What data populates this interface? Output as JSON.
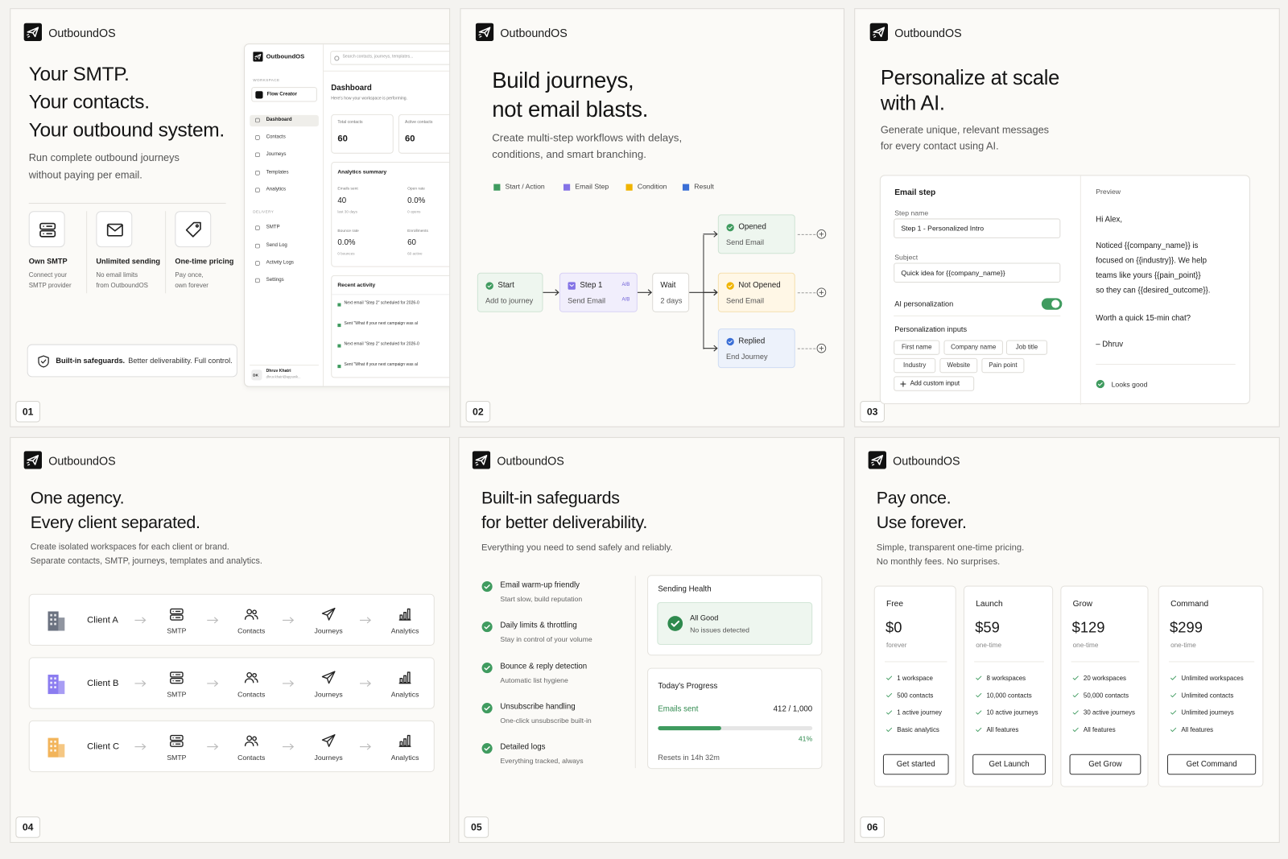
{
  "brand": "OutboundOS",
  "panels": [
    {
      "number": "01",
      "headline": [
        "Your SMTP.",
        "Your contacts.",
        "Your outbound system."
      ],
      "subtitle": [
        "Run complete outbound journeys",
        "without paying per email."
      ],
      "features": [
        {
          "title": "Own SMTP",
          "desc": [
            "Connect your",
            "SMTP provider"
          ]
        },
        {
          "title": "Unlimited sending",
          "desc": [
            "No email limits",
            "from OutboundOS"
          ]
        },
        {
          "title": "One-time pricing",
          "desc": [
            "Pay once,",
            "own forever"
          ]
        }
      ],
      "safeguard": {
        "strong": "Built-in safeguards.",
        "text": "Better deliverability. Full control."
      },
      "dashboard": {
        "search": "Search contacts, journeys, templates...",
        "workspace_label": "WORKSPACE",
        "workspace": "Flow Creator",
        "nav": [
          "Dashboard",
          "Contacts",
          "Journeys",
          "Templates",
          "Analytics"
        ],
        "delivery_label": "DELIVERY",
        "delivery_nav": [
          "SMTP",
          "Send Log",
          "Activity Logs",
          "Settings"
        ],
        "user": {
          "initials": "DK",
          "name": "Dhruv Khatri",
          "email": "dhruv.khatri@appunik..."
        },
        "title": "Dashboard",
        "subtitle": "Here's how your workspace is performing.",
        "stats": [
          {
            "label": "Total contacts",
            "value": "60"
          },
          {
            "label": "Active contacts",
            "value": "60"
          }
        ],
        "analytics_title": "Analytics summary",
        "analytics": [
          {
            "label": "Emails sent",
            "value": "40",
            "note": "last 30 days"
          },
          {
            "label": "Open rate",
            "value": "0.0%",
            "note": "0 opens"
          },
          {
            "label": "Bounce rate",
            "value": "0.0%",
            "note": "0 bounces"
          },
          {
            "label": "Enrollments",
            "value": "60",
            "note": "60 active"
          }
        ],
        "activity_title": "Recent activity",
        "activity": [
          "Next email \"Step 2\" scheduled for 2026-0",
          "Sent \"What if your next campaign was al",
          "Next email \"Step 2\" scheduled for 2026-0",
          "Sent \"What if your next campaign was al"
        ]
      }
    },
    {
      "number": "02",
      "headline": [
        "Build journeys,",
        "not email blasts."
      ],
      "subtitle": [
        "Create multi-step workflows with delays,",
        "conditions, and smart branching."
      ],
      "legend": [
        {
          "name": "Start / Action",
          "color": "#3f9b5f"
        },
        {
          "name": "Email Step",
          "color": "#8473e6"
        },
        {
          "name": "Condition",
          "color": "#f0b400"
        },
        {
          "name": "Result",
          "color": "#3b6fd6"
        }
      ],
      "start": {
        "title": "Start",
        "sub": "Add to journey"
      },
      "step": {
        "title": "Step 1",
        "sub": "Send Email",
        "badge": "A/B"
      },
      "wait": {
        "title": "Wait",
        "sub": "2 days"
      },
      "branches": [
        {
          "title": "Opened",
          "sub": "Send Email"
        },
        {
          "title": "Not Opened",
          "sub": "Send Email"
        },
        {
          "title": "Replied",
          "sub": "End Journey"
        }
      ]
    },
    {
      "number": "03",
      "headline": [
        "Personalize at scale",
        "with AI."
      ],
      "subtitle": [
        "Generate unique, relevant messages",
        "for every contact using AI."
      ],
      "form": {
        "title": "Email step",
        "step_label": "Step name",
        "step_value": "Step 1 - Personalized Intro",
        "subject_label": "Subject",
        "subject_value": "Quick idea for {{company_name}}",
        "ai_label": "AI personalization",
        "inputs_label": "Personalization inputs",
        "chips": [
          "First name",
          "Company name",
          "Job title",
          "Industry",
          "Website",
          "Pain point"
        ],
        "add": "Add custom input"
      },
      "preview": {
        "title": "Preview",
        "greeting": "Hi Alex,",
        "body": [
          "Noticed {{company_name}} is",
          "focused on {{industry}}. We help",
          "teams like yours {{pain_point}}",
          "so they can {{desired_outcome}}."
        ],
        "ask": "Worth a quick 15-min chat?",
        "sign": "– Dhruv",
        "status": "Looks good"
      }
    },
    {
      "number": "04",
      "headline": [
        "One agency.",
        "Every client separated."
      ],
      "subtitle": [
        "Create isolated workspaces for each client or brand.",
        "Separate contacts, SMTP, journeys, templates and analytics."
      ],
      "clients": [
        {
          "name": "Client A",
          "color": "#6b7280"
        },
        {
          "name": "Client B",
          "color": "#8b7cf0"
        },
        {
          "name": "Client C",
          "color": "#f2b45a"
        }
      ],
      "steps": [
        "SMTP",
        "Contacts",
        "Journeys",
        "Analytics"
      ]
    },
    {
      "number": "05",
      "headline": [
        "Built-in safeguards",
        "for better deliverability."
      ],
      "subtitle": [
        "Everything you need to send safely and reliably."
      ],
      "items": [
        {
          "title": "Email warm-up friendly",
          "desc": "Start slow, build reputation"
        },
        {
          "title": "Daily limits & throttling",
          "desc": "Stay in control of your volume"
        },
        {
          "title": "Bounce & reply detection",
          "desc": "Automatic list hygiene"
        },
        {
          "title": "Unsubscribe handling",
          "desc": "One-click unsubscribe built-in"
        },
        {
          "title": "Detailed logs",
          "desc": "Everything tracked, always"
        }
      ],
      "health": {
        "title": "Sending Health",
        "status": "All Good",
        "note": "No issues detected"
      },
      "progress": {
        "title": "Today's Progress",
        "label": "Emails sent",
        "count": "412 / 1,000",
        "percent": {
          "value": 41,
          "label": "41%"
        },
        "reset": "Resets in 14h 32m"
      }
    },
    {
      "number": "06",
      "headline": [
        "Pay once.",
        "Use forever."
      ],
      "subtitle": [
        "Simple, transparent one-time pricing.",
        "No monthly fees. No surprises."
      ],
      "plans": [
        {
          "name": "Free",
          "price": "$0",
          "period": "forever",
          "features": [
            "1 workspace",
            "500 contacts",
            "1 active journey",
            "Basic analytics"
          ],
          "cta": "Get started"
        },
        {
          "name": "Launch",
          "price": "$59",
          "period": "one-time",
          "features": [
            "8 workspaces",
            "10,000 contacts",
            "10 active journeys",
            "All features"
          ],
          "cta": "Get Launch"
        },
        {
          "name": "Grow",
          "price": "$129",
          "period": "one-time",
          "features": [
            "20 workspaces",
            "50,000 contacts",
            "30 active journeys",
            "All features"
          ],
          "cta": "Get Grow"
        },
        {
          "name": "Command",
          "price": "$299",
          "period": "one-time",
          "features": [
            "Unlimited workspaces",
            "Unlimited contacts",
            "Unlimited journeys",
            "All features"
          ],
          "cta": "Get Command"
        }
      ]
    }
  ]
}
